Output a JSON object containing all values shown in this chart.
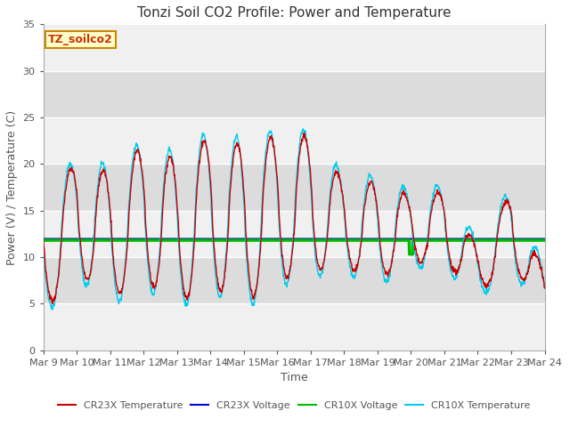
{
  "title": "Tonzi Soil CO2 Profile: Power and Temperature",
  "xlabel": "Time",
  "ylabel": "Power (V) / Temperature (C)",
  "ylim": [
    0,
    35
  ],
  "xlim": [
    0,
    15
  ],
  "xtick_labels": [
    "Mar 9",
    "Mar 10",
    "Mar 11",
    "Mar 12",
    "Mar 13",
    "Mar 14",
    "Mar 15",
    "Mar 16",
    "Mar 17",
    "Mar 18",
    "Mar 19",
    "Mar 20",
    "Mar 21",
    "Mar 22",
    "Mar 23",
    "Mar 24"
  ],
  "cr23x_temp_color": "#cc0000",
  "cr23x_volt_color": "#0000cc",
  "cr10x_volt_color": "#00bb00",
  "cr10x_temp_color": "#00ccee",
  "cr10x_volt_value": 11.8,
  "cr23x_volt_value": 11.95,
  "plot_bg_light": "#f0f0f0",
  "plot_bg_dark": "#dcdcdc",
  "legend_box_color": "#ffffcc",
  "legend_box_edge": "#cc8800",
  "legend_text": "TZ_soilco2",
  "title_fontsize": 11,
  "label_fontsize": 9,
  "tick_fontsize": 8,
  "peak_days": [
    0.0,
    1.0,
    2.0,
    3.0,
    4.0,
    5.0,
    6.0,
    7.0,
    8.0,
    9.0,
    10.0,
    11.0,
    12.0,
    13.0,
    14.0,
    15.0
  ],
  "peak_amps": [
    11.0,
    12.0,
    13.5,
    14.5,
    15.5,
    16.0,
    17.0,
    15.5,
    14.5,
    9.0,
    10.5,
    7.0,
    7.5,
    5.0,
    7.5,
    4.0
  ],
  "trough_days": [
    0.0,
    1.0,
    2.0,
    3.0,
    4.0,
    5.0,
    6.0,
    7.0,
    8.0,
    9.0,
    10.0,
    11.0,
    12.0,
    13.0,
    14.0,
    15.0
  ],
  "trough_vals": [
    4.0,
    8.5,
    5.5,
    7.5,
    5.0,
    7.0,
    5.0,
    7.5,
    8.5,
    9.0,
    7.5,
    9.5,
    9.5,
    6.0,
    9.5,
    4.0
  ]
}
